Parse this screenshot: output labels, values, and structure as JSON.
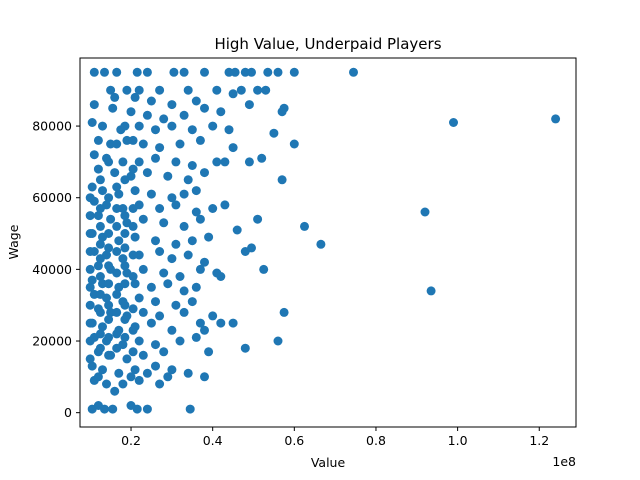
{
  "chart_data": {
    "type": "scatter",
    "title": "High Value, Underpaid Players",
    "xlabel": "Value",
    "ylabel": "Wage",
    "x_offset_text": "1e8",
    "xlim": [
      0.075,
      1.29
    ],
    "ylim": [
      -4000,
      99000
    ],
    "x_scale_note": "x values shown in units of 1e8",
    "xticks": [
      0.2,
      0.4,
      0.6,
      0.8,
      1.0,
      1.2
    ],
    "xtick_labels": [
      "0.2",
      "0.4",
      "0.6",
      "0.8",
      "1.0",
      "1.2"
    ],
    "yticks": [
      0,
      20000,
      40000,
      60000,
      80000
    ],
    "ytick_labels": [
      "0",
      "20000",
      "40000",
      "60000",
      "80000"
    ],
    "grid": false,
    "color": "#1f77b4",
    "points": [
      [
        0.11,
        95000
      ],
      [
        0.135,
        95000
      ],
      [
        0.165,
        95000
      ],
      [
        0.215,
        95000
      ],
      [
        0.24,
        95000
      ],
      [
        0.305,
        95000
      ],
      [
        0.33,
        95000
      ],
      [
        0.38,
        95000
      ],
      [
        0.44,
        95000
      ],
      [
        0.455,
        95000
      ],
      [
        0.48,
        95000
      ],
      [
        0.495,
        95000
      ],
      [
        0.535,
        95000
      ],
      [
        0.56,
        95000
      ],
      [
        0.6,
        95000
      ],
      [
        0.745,
        95000
      ],
      [
        0.15,
        90000
      ],
      [
        0.19,
        90000
      ],
      [
        0.22,
        90000
      ],
      [
        0.27,
        90000
      ],
      [
        0.34,
        90000
      ],
      [
        0.41,
        90000
      ],
      [
        0.47,
        90000
      ],
      [
        0.51,
        90000
      ],
      [
        0.53,
        90000
      ],
      [
        0.16,
        88000
      ],
      [
        0.21,
        88000
      ],
      [
        0.25,
        87000
      ],
      [
        0.3,
        86000
      ],
      [
        0.36,
        87000
      ],
      [
        0.45,
        89000
      ],
      [
        0.49,
        86000
      ],
      [
        0.11,
        86000
      ],
      [
        0.155,
        85000
      ],
      [
        0.2,
        84000
      ],
      [
        0.24,
        83000
      ],
      [
        0.28,
        82000
      ],
      [
        0.33,
        83000
      ],
      [
        0.38,
        85000
      ],
      [
        0.42,
        84000
      ],
      [
        0.575,
        85000
      ],
      [
        0.57,
        84000
      ],
      [
        0.105,
        81000
      ],
      [
        0.13,
        80000
      ],
      [
        0.175,
        79000
      ],
      [
        0.22,
        80000
      ],
      [
        0.26,
        79000
      ],
      [
        0.3,
        80000
      ],
      [
        0.35,
        79000
      ],
      [
        0.4,
        80000
      ],
      [
        0.44,
        79000
      ],
      [
        0.55,
        78000
      ],
      [
        0.99,
        81000
      ],
      [
        1.24,
        82000
      ],
      [
        0.12,
        76000
      ],
      [
        0.15,
        75000
      ],
      [
        0.19,
        76000
      ],
      [
        0.23,
        75000
      ],
      [
        0.27,
        74000
      ],
      [
        0.32,
        75000
      ],
      [
        0.37,
        76000
      ],
      [
        0.45,
        74000
      ],
      [
        0.6,
        75000
      ],
      [
        0.11,
        72000
      ],
      [
        0.14,
        71000
      ],
      [
        0.18,
        70000
      ],
      [
        0.22,
        70000
      ],
      [
        0.26,
        71000
      ],
      [
        0.31,
        70000
      ],
      [
        0.35,
        69000
      ],
      [
        0.41,
        70000
      ],
      [
        0.43,
        70000
      ],
      [
        0.49,
        70000
      ],
      [
        0.52,
        71000
      ],
      [
        0.12,
        68000
      ],
      [
        0.16,
        67000
      ],
      [
        0.2,
        66000
      ],
      [
        0.24,
        67000
      ],
      [
        0.29,
        66000
      ],
      [
        0.34,
        65000
      ],
      [
        0.38,
        67000
      ],
      [
        0.57,
        65000
      ],
      [
        0.105,
        63000
      ],
      [
        0.13,
        62000
      ],
      [
        0.17,
        61000
      ],
      [
        0.21,
        62000
      ],
      [
        0.25,
        61000
      ],
      [
        0.3,
        60000
      ],
      [
        0.33,
        61000
      ],
      [
        0.36,
        62000
      ],
      [
        0.11,
        59000
      ],
      [
        0.14,
        58000
      ],
      [
        0.18,
        57000
      ],
      [
        0.22,
        58000
      ],
      [
        0.27,
        57000
      ],
      [
        0.31,
        58000
      ],
      [
        0.36,
        56000
      ],
      [
        0.4,
        57000
      ],
      [
        0.43,
        58000
      ],
      [
        0.92,
        56000
      ],
      [
        0.12,
        55000
      ],
      [
        0.15,
        54000
      ],
      [
        0.19,
        53000
      ],
      [
        0.23,
        54000
      ],
      [
        0.28,
        53000
      ],
      [
        0.33,
        52000
      ],
      [
        0.37,
        54000
      ],
      [
        0.46,
        51000
      ],
      [
        0.51,
        54000
      ],
      [
        0.625,
        52000
      ],
      [
        0.105,
        50000
      ],
      [
        0.13,
        49000
      ],
      [
        0.17,
        48000
      ],
      [
        0.21,
        49000
      ],
      [
        0.26,
        48000
      ],
      [
        0.31,
        47000
      ],
      [
        0.35,
        48000
      ],
      [
        0.39,
        49000
      ],
      [
        0.48,
        45000
      ],
      [
        0.495,
        46000
      ],
      [
        0.665,
        47000
      ],
      [
        0.11,
        45000
      ],
      [
        0.14,
        44000
      ],
      [
        0.18,
        43000
      ],
      [
        0.22,
        44000
      ],
      [
        0.27,
        45000
      ],
      [
        0.3,
        43000
      ],
      [
        0.34,
        44000
      ],
      [
        0.38,
        42000
      ],
      [
        0.42,
        38000
      ],
      [
        0.12,
        41000
      ],
      [
        0.15,
        40000
      ],
      [
        0.19,
        39000
      ],
      [
        0.23,
        40000
      ],
      [
        0.28,
        39000
      ],
      [
        0.32,
        38000
      ],
      [
        0.37,
        40000
      ],
      [
        0.41,
        39000
      ],
      [
        0.525,
        40000
      ],
      [
        0.105,
        37000
      ],
      [
        0.13,
        36000
      ],
      [
        0.17,
        35000
      ],
      [
        0.21,
        36000
      ],
      [
        0.25,
        35000
      ],
      [
        0.29,
        36000
      ],
      [
        0.33,
        34000
      ],
      [
        0.36,
        35000
      ],
      [
        0.935,
        34000
      ],
      [
        0.11,
        33000
      ],
      [
        0.14,
        32000
      ],
      [
        0.18,
        31000
      ],
      [
        0.22,
        32000
      ],
      [
        0.26,
        31000
      ],
      [
        0.31,
        30000
      ],
      [
        0.35,
        31000
      ],
      [
        0.12,
        29000
      ],
      [
        0.15,
        28000
      ],
      [
        0.19,
        27000
      ],
      [
        0.23,
        28000
      ],
      [
        0.27,
        27000
      ],
      [
        0.33,
        28000
      ],
      [
        0.4,
        27000
      ],
      [
        0.575,
        28000
      ],
      [
        0.105,
        25000
      ],
      [
        0.13,
        24000
      ],
      [
        0.17,
        23000
      ],
      [
        0.21,
        24000
      ],
      [
        0.25,
        25000
      ],
      [
        0.3,
        23000
      ],
      [
        0.37,
        25000
      ],
      [
        0.38,
        23000
      ],
      [
        0.42,
        25000
      ],
      [
        0.45,
        25000
      ],
      [
        0.11,
        21000
      ],
      [
        0.14,
        20000
      ],
      [
        0.18,
        19000
      ],
      [
        0.22,
        20000
      ],
      [
        0.26,
        19000
      ],
      [
        0.32,
        20000
      ],
      [
        0.36,
        21000
      ],
      [
        0.56,
        20000
      ],
      [
        0.12,
        17000
      ],
      [
        0.15,
        16000
      ],
      [
        0.19,
        15000
      ],
      [
        0.23,
        16000
      ],
      [
        0.28,
        17000
      ],
      [
        0.39,
        17000
      ],
      [
        0.48,
        18000
      ],
      [
        0.105,
        13000
      ],
      [
        0.13,
        12000
      ],
      [
        0.17,
        11000
      ],
      [
        0.21,
        12000
      ],
      [
        0.26,
        13000
      ],
      [
        0.3,
        12000
      ],
      [
        0.11,
        9000
      ],
      [
        0.14,
        8000
      ],
      [
        0.18,
        8000
      ],
      [
        0.22,
        9000
      ],
      [
        0.27,
        8000
      ],
      [
        0.16,
        6000
      ],
      [
        0.12,
        10000
      ],
      [
        0.2,
        10000
      ],
      [
        0.24,
        11000
      ],
      [
        0.29,
        10000
      ],
      [
        0.34,
        11000
      ],
      [
        0.38,
        10000
      ],
      [
        0.105,
        1000
      ],
      [
        0.12,
        2000
      ],
      [
        0.135,
        1000
      ],
      [
        0.155,
        1000
      ],
      [
        0.2,
        2000
      ],
      [
        0.215,
        1000
      ],
      [
        0.24,
        1000
      ],
      [
        0.345,
        1000
      ],
      [
        0.1,
        30000
      ],
      [
        0.1,
        55000
      ],
      [
        0.1,
        20000
      ],
      [
        0.1,
        45000
      ],
      [
        0.1,
        40000
      ],
      [
        0.1,
        25000
      ],
      [
        0.1,
        35000
      ],
      [
        0.1,
        50000
      ],
      [
        0.1,
        15000
      ],
      [
        0.1,
        60000
      ],
      [
        0.125,
        47000
      ],
      [
        0.125,
        43000
      ],
      [
        0.125,
        38000
      ],
      [
        0.125,
        33000
      ],
      [
        0.125,
        28000
      ],
      [
        0.125,
        22000
      ],
      [
        0.125,
        18000
      ],
      [
        0.125,
        52000
      ],
      [
        0.125,
        57000
      ],
      [
        0.125,
        65000
      ],
      [
        0.145,
        46000
      ],
      [
        0.145,
        41000
      ],
      [
        0.145,
        36000
      ],
      [
        0.145,
        26000
      ],
      [
        0.145,
        21000
      ],
      [
        0.145,
        16000
      ],
      [
        0.145,
        50000
      ],
      [
        0.145,
        30000
      ],
      [
        0.145,
        60000
      ],
      [
        0.145,
        70000
      ],
      [
        0.165,
        45000
      ],
      [
        0.165,
        39000
      ],
      [
        0.165,
        33000
      ],
      [
        0.165,
        28000
      ],
      [
        0.165,
        22000
      ],
      [
        0.165,
        18000
      ],
      [
        0.165,
        52000
      ],
      [
        0.165,
        57000
      ],
      [
        0.165,
        63000
      ],
      [
        0.165,
        75000
      ],
      [
        0.185,
        46000
      ],
      [
        0.185,
        41000
      ],
      [
        0.185,
        36000
      ],
      [
        0.185,
        26000
      ],
      [
        0.185,
        21000
      ],
      [
        0.185,
        50000
      ],
      [
        0.185,
        30000
      ],
      [
        0.185,
        55000
      ],
      [
        0.185,
        65000
      ],
      [
        0.185,
        80000
      ],
      [
        0.205,
        44000
      ],
      [
        0.205,
        38000
      ],
      [
        0.205,
        29000
      ],
      [
        0.205,
        23000
      ],
      [
        0.205,
        17000
      ],
      [
        0.205,
        52000
      ],
      [
        0.205,
        57000
      ],
      [
        0.205,
        68000
      ],
      [
        0.205,
        76000
      ]
    ]
  }
}
